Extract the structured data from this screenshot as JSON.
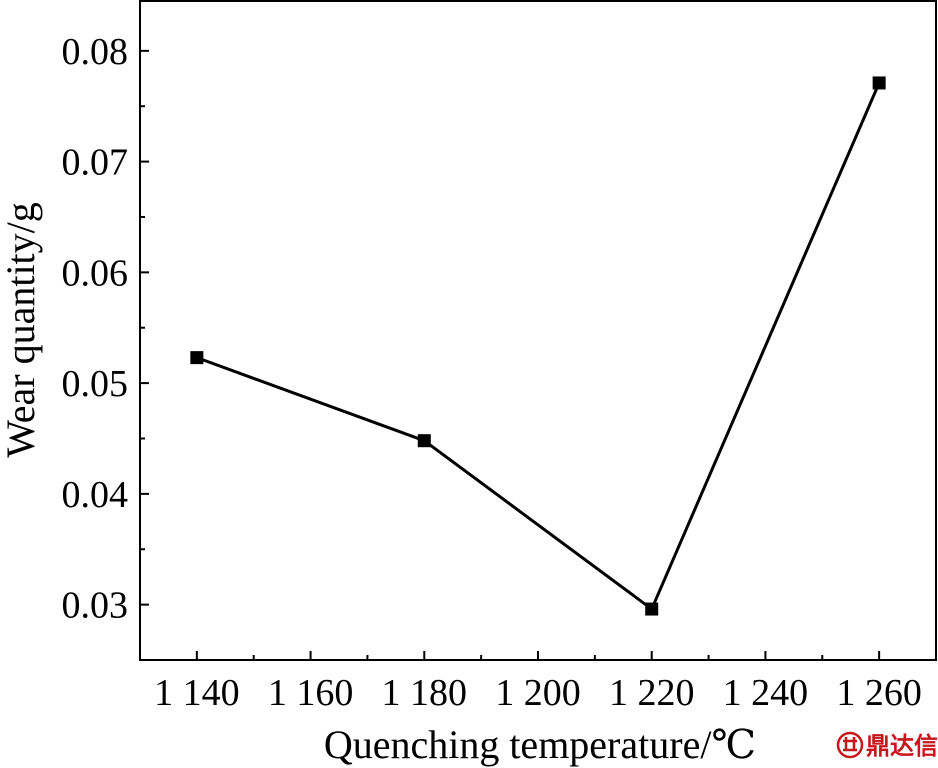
{
  "chart_data": {
    "type": "line",
    "xlabel": "Quenching temperature/℃",
    "ylabel": "Wear quantity/g",
    "x_ticks": [
      "1 140",
      "1 160",
      "1 180",
      "1 200",
      "1 220",
      "1 240",
      "1 260"
    ],
    "y_ticks": [
      "0.03",
      "0.04",
      "0.05",
      "0.06",
      "0.07",
      "0.08"
    ],
    "xlim": [
      1130,
      1270
    ],
    "ylim": [
      0.025,
      0.0845
    ],
    "x_tick_values": [
      1140,
      1160,
      1180,
      1200,
      1220,
      1240,
      1260
    ],
    "y_tick_values": [
      0.03,
      0.04,
      0.05,
      0.06,
      0.07,
      0.08
    ],
    "series": [
      {
        "x": [
          1140,
          1180,
          1220,
          1260
        ],
        "y": [
          0.0523,
          0.0448,
          0.0296,
          0.0771
        ],
        "marker": "square",
        "color": "#000000"
      }
    ],
    "grid": false
  },
  "watermark": {
    "text": "鼎达信",
    "icon": "logo-icon",
    "color": "#c8161d"
  }
}
